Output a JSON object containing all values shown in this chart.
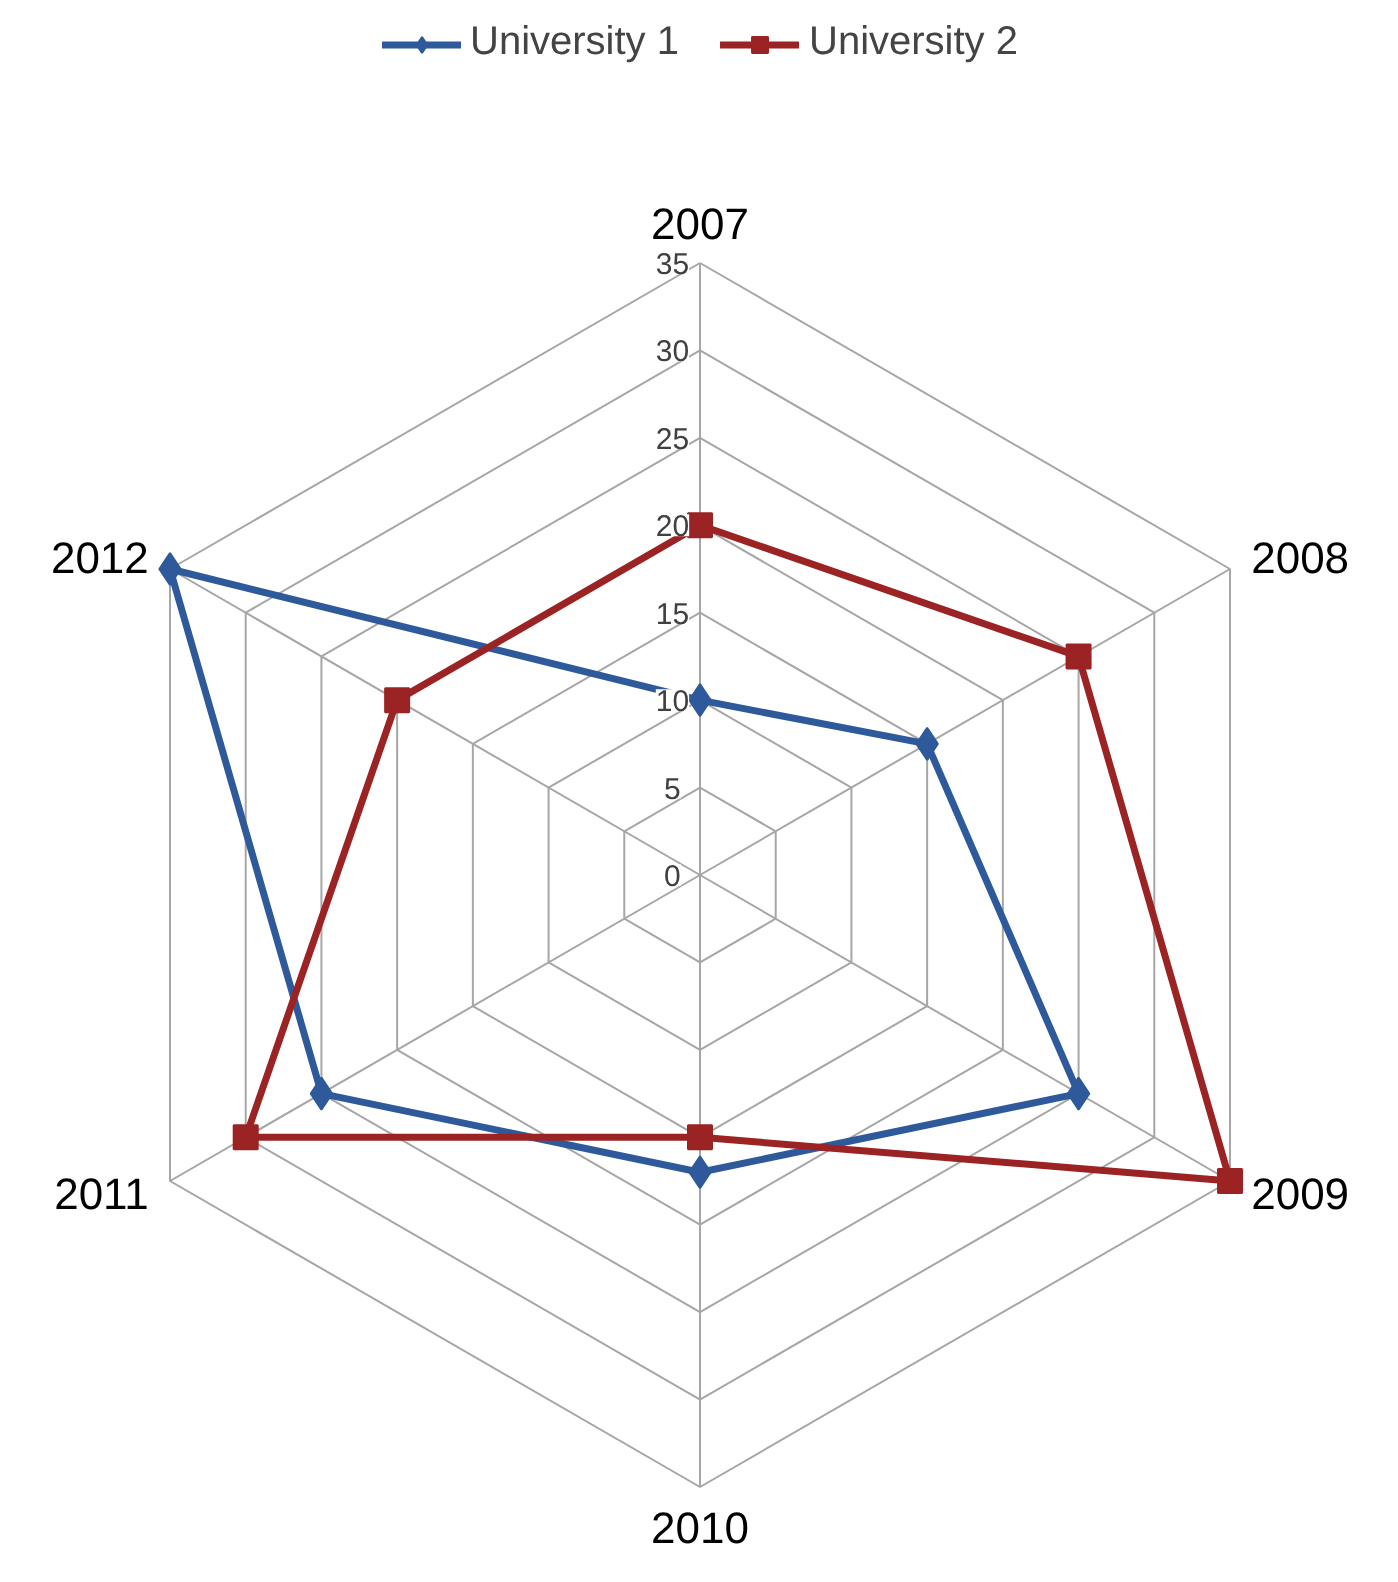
{
  "chart_data": {
    "type": "radar",
    "categories": [
      "2007",
      "2008",
      "2009",
      "2010",
      "2011",
      "2012"
    ],
    "series": [
      {
        "name": "University 1",
        "color": "#2e5a9c",
        "marker": "diamond",
        "values": [
          10,
          15,
          25,
          17,
          25,
          35
        ]
      },
      {
        "name": "University 2",
        "color": "#9b2323",
        "marker": "square",
        "values": [
          20,
          25,
          35,
          15,
          30,
          20
        ]
      }
    ],
    "ylim": [
      0,
      35
    ],
    "yticks": [
      0,
      5,
      10,
      15,
      20,
      25,
      30,
      35
    ],
    "grid": true,
    "legend": "top",
    "line_style": "solid"
  }
}
